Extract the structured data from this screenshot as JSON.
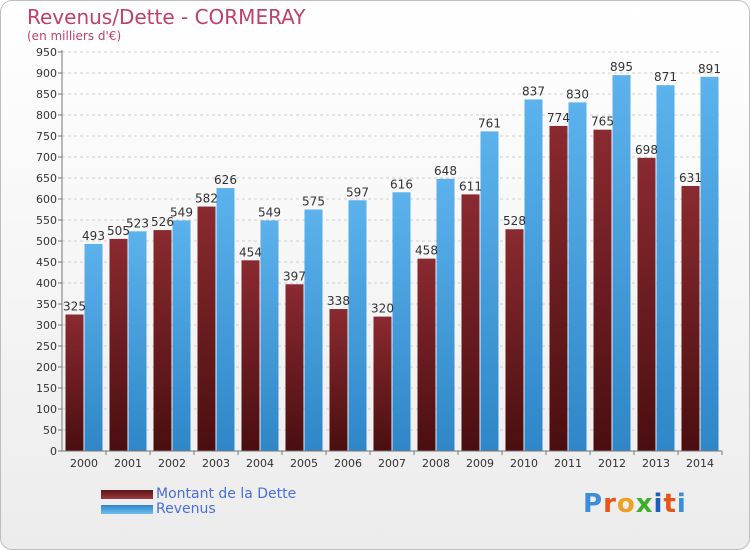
{
  "header": {
    "title": "Revenus/Dette - CORMERAY",
    "subtitle": "(en milliers d'€)"
  },
  "logo": {
    "letters": [
      "P",
      "r",
      "o",
      "x",
      "i",
      "t",
      "i"
    ],
    "letter_colors": [
      "#3a8fd8",
      "#e8541a",
      "#f0a020",
      "#3fae2a",
      "#1f5fb8",
      "#e8541a",
      "#3a8fd8"
    ]
  },
  "chart_data": {
    "type": "bar",
    "categories": [
      "2000",
      "2001",
      "2002",
      "2003",
      "2004",
      "2005",
      "2006",
      "2007",
      "2008",
      "2009",
      "2010",
      "2011",
      "2012",
      "2013",
      "2014"
    ],
    "series": [
      {
        "name": "Montant de la Dette",
        "color": "#7a1f24",
        "values": [
          325,
          505,
          526,
          582,
          454,
          397,
          338,
          320,
          458,
          611,
          528,
          774,
          765,
          698,
          631
        ]
      },
      {
        "name": "Revenus",
        "color": "#4aa3e0",
        "values": [
          493,
          523,
          549,
          626,
          549,
          575,
          597,
          616,
          648,
          761,
          837,
          830,
          895,
          871,
          891
        ]
      }
    ],
    "series_labels": [
      [
        "325",
        "505",
        "526",
        "582",
        "454",
        "397",
        "338",
        "320",
        "458",
        "611",
        "528",
        "774",
        "765",
        "698",
        "631"
      ],
      [
        "493",
        "523",
        "549",
        "626",
        "549",
        "575",
        "597",
        "616",
        "648",
        "761",
        "837",
        "830",
        "895",
        "871",
        "891"
      ]
    ],
    "yticks": [
      "0",
      "50",
      "100",
      "150",
      "200",
      "250",
      "300",
      "350",
      "400",
      "450",
      "500",
      "550",
      "600",
      "650",
      "700",
      "750",
      "800",
      "850",
      "900",
      "950"
    ],
    "ylim": [
      0,
      950
    ],
    "grid": true,
    "legend": "bottom-left"
  }
}
